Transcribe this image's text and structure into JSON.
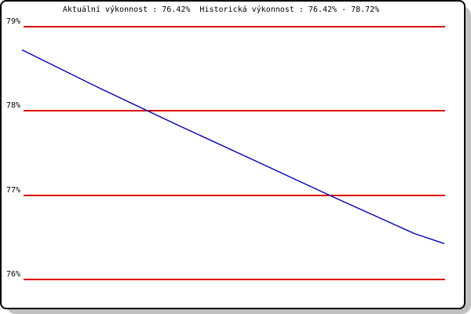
{
  "window": {
    "background": "#ffffff",
    "border_color": "#000000",
    "shadow_color": "#c0c0c0",
    "text_color": "#000000"
  },
  "chart_data": {
    "type": "line",
    "title": "Aktuální výkonnost : 76.42%  Historická výkonnost : 76.42% - 78.72%",
    "current_performance": "76.42%",
    "historical_performance_min": "76.42%",
    "historical_performance_max": "78.72%",
    "xlabel": "",
    "ylabel": "",
    "ylim": [
      75.7,
      79.3
    ],
    "grid": true,
    "legend_position": "none",
    "gridline_color": "#e00000",
    "y_ticks": [
      {
        "value": 79,
        "label": "79%"
      },
      {
        "value": 78,
        "label": "78%"
      },
      {
        "value": 77,
        "label": "77%"
      },
      {
        "value": 76,
        "label": "76%"
      }
    ],
    "series": [
      {
        "name": "výkonnost",
        "color": "#0000b0",
        "points": [
          {
            "x": 0.0,
            "y": 78.72
          },
          {
            "x": 0.186,
            "y": 78.26
          },
          {
            "x": 0.372,
            "y": 77.82
          },
          {
            "x": 0.558,
            "y": 77.39
          },
          {
            "x": 0.743,
            "y": 76.96
          },
          {
            "x": 0.929,
            "y": 76.54
          },
          {
            "x": 1.0,
            "y": 76.42
          }
        ]
      }
    ]
  }
}
